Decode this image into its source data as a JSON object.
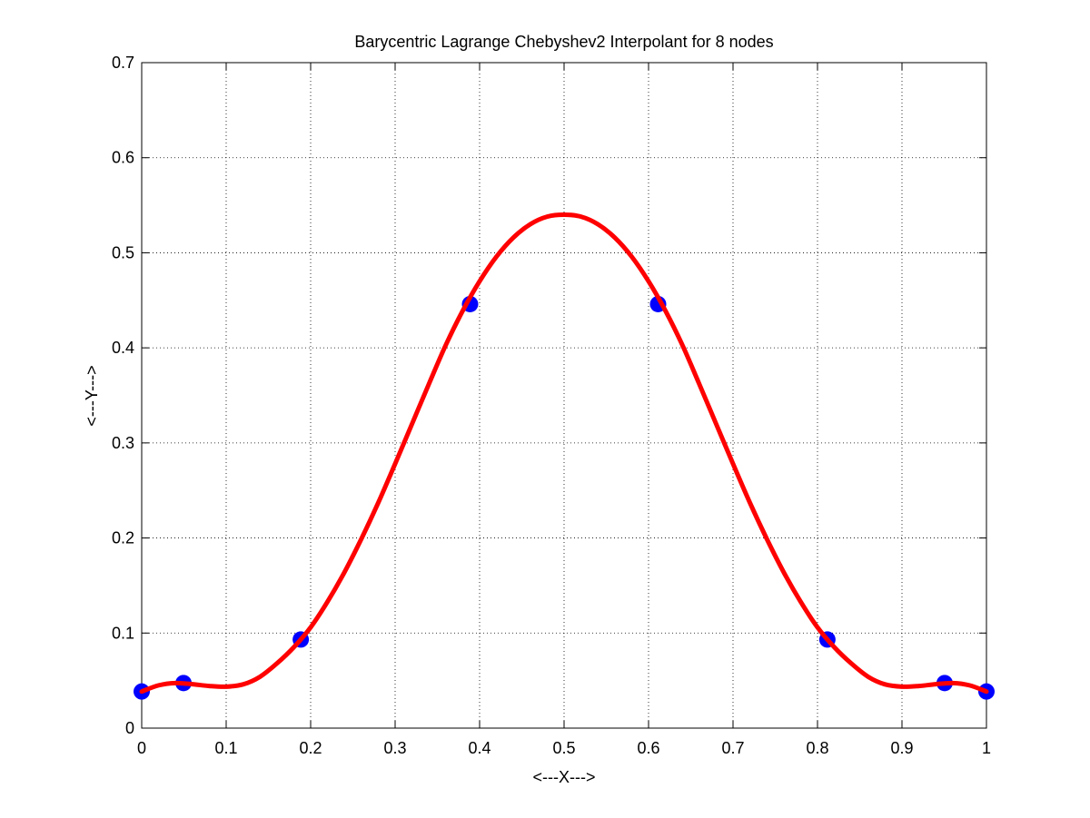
{
  "chart_data": {
    "type": "line",
    "title": "Barycentric Lagrange Chebyshev2 Interpolant for 8 nodes",
    "xlabel": "<---X--->",
    "ylabel": "<---Y--->",
    "xlim": [
      0,
      1
    ],
    "ylim": [
      0,
      0.7
    ],
    "xticks": [
      0,
      0.1,
      0.2,
      0.3,
      0.4,
      0.5,
      0.6,
      0.7,
      0.8,
      0.9,
      1
    ],
    "xtick_labels": [
      "0",
      "0.1",
      "0.2",
      "0.3",
      "0.4",
      "0.5",
      "0.6",
      "0.7",
      "0.8",
      "0.9",
      "1"
    ],
    "yticks": [
      0,
      0.1,
      0.2,
      0.3,
      0.4,
      0.5,
      0.6,
      0.7
    ],
    "ytick_labels": [
      "0",
      "0.1",
      "0.2",
      "0.3",
      "0.4",
      "0.5",
      "0.6",
      "0.7"
    ],
    "grid": true,
    "series": [
      {
        "kind": "markers",
        "color": "#0000ff",
        "x": [
          0,
          0.0495,
          0.1883,
          0.3887,
          0.6113,
          0.8117,
          0.9505,
          1
        ],
        "y": [
          0.0385,
          0.0474,
          0.0932,
          0.446,
          0.446,
          0.0932,
          0.0474,
          0.0385
        ]
      },
      {
        "kind": "line",
        "color": "#ff0000",
        "x": [
          0,
          0.02,
          0.04,
          0.06,
          0.08,
          0.1,
          0.12,
          0.14,
          0.16,
          0.18,
          0.2,
          0.22,
          0.24,
          0.26,
          0.28,
          0.3,
          0.32,
          0.34,
          0.36,
          0.38,
          0.4,
          0.42,
          0.44,
          0.46,
          0.48,
          0.5,
          0.52,
          0.54,
          0.56,
          0.58,
          0.6,
          0.62,
          0.64,
          0.66,
          0.68,
          0.7,
          0.72,
          0.74,
          0.76,
          0.78,
          0.8,
          0.82,
          0.84,
          0.86,
          0.88,
          0.9,
          0.92,
          0.94,
          0.96,
          0.98,
          1.0
        ],
        "y": [
          0.0385,
          0.045,
          0.0474,
          0.0462,
          0.0443,
          0.0436,
          0.046,
          0.054,
          0.068,
          0.085,
          0.106,
          0.133,
          0.164,
          0.199,
          0.237,
          0.278,
          0.32,
          0.362,
          0.403,
          0.439,
          0.47,
          0.496,
          0.516,
          0.53,
          0.538,
          0.54,
          0.538,
          0.53,
          0.516,
          0.496,
          0.47,
          0.439,
          0.403,
          0.362,
          0.32,
          0.278,
          0.237,
          0.199,
          0.164,
          0.133,
          0.106,
          0.085,
          0.068,
          0.054,
          0.046,
          0.0436,
          0.0443,
          0.0462,
          0.0474,
          0.045,
          0.0385
        ]
      }
    ]
  }
}
